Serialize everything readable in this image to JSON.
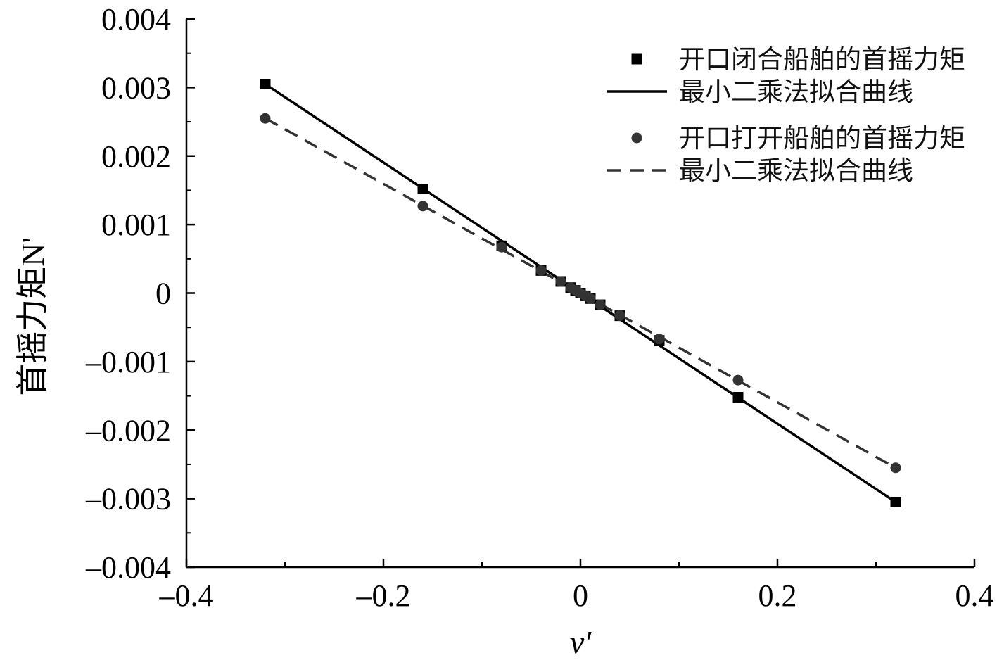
{
  "chart_data": {
    "type": "scatter",
    "title": "",
    "xlabel": "v'",
    "ylabel": "首摇力矩N'",
    "xlim": [
      -0.4,
      0.4
    ],
    "ylim": [
      -0.004,
      0.004
    ],
    "x_ticks": [
      -0.4,
      -0.2,
      0,
      0.2,
      0.4
    ],
    "x_tick_labels": [
      "–0.4",
      "–0.2",
      "0",
      "0.2",
      "0.4"
    ],
    "y_ticks": [
      0.004,
      0.003,
      0.002,
      0.001,
      0,
      -0.001,
      -0.002,
      -0.003,
      -0.004
    ],
    "y_tick_labels": [
      "0.004",
      "0.003",
      "0.002",
      "0.001",
      "0",
      "–0.001",
      "–0.002",
      "–0.003",
      "–0.004"
    ],
    "grid": false,
    "legend_position": "top-right",
    "series": [
      {
        "name": "开口闭合船舶的首摇力矩",
        "kind": "scatter",
        "marker": "square",
        "color": "#000000",
        "x": [
          -0.32,
          -0.16,
          -0.08,
          -0.04,
          -0.02,
          -0.01,
          -0.005,
          0.0,
          0.005,
          0.01,
          0.02,
          0.04,
          0.08,
          0.16,
          0.32
        ],
        "y": [
          0.00305,
          0.00152,
          0.00069,
          0.00033,
          0.00017,
          8e-05,
          4e-05,
          0.0,
          -4e-05,
          -8e-05,
          -0.00017,
          -0.00033,
          -0.00069,
          -0.00152,
          -0.00305
        ]
      },
      {
        "name": "最小二乘法拟合曲线",
        "kind": "line",
        "style": "solid",
        "color": "#000000",
        "x": [
          -0.32,
          0.32
        ],
        "y": [
          0.00305,
          -0.00305
        ]
      },
      {
        "name": "开口打开船舶的首摇力矩",
        "kind": "scatter",
        "marker": "circle",
        "color": "#333333",
        "x": [
          -0.32,
          -0.16,
          -0.08,
          -0.04,
          -0.02,
          -0.01,
          -0.005,
          0.0,
          0.005,
          0.01,
          0.02,
          0.04,
          0.08,
          0.16,
          0.32
        ],
        "y": [
          0.00255,
          0.00127,
          0.00067,
          0.00033,
          0.00017,
          8e-05,
          4e-05,
          0.0,
          -4e-05,
          -8e-05,
          -0.00017,
          -0.00033,
          -0.00067,
          -0.00127,
          -0.00255
        ]
      },
      {
        "name": "最小二乘法拟合曲线",
        "kind": "line",
        "style": "dashed",
        "color": "#333333",
        "x": [
          -0.32,
          0.32
        ],
        "y": [
          0.00255,
          -0.00255
        ]
      }
    ]
  }
}
